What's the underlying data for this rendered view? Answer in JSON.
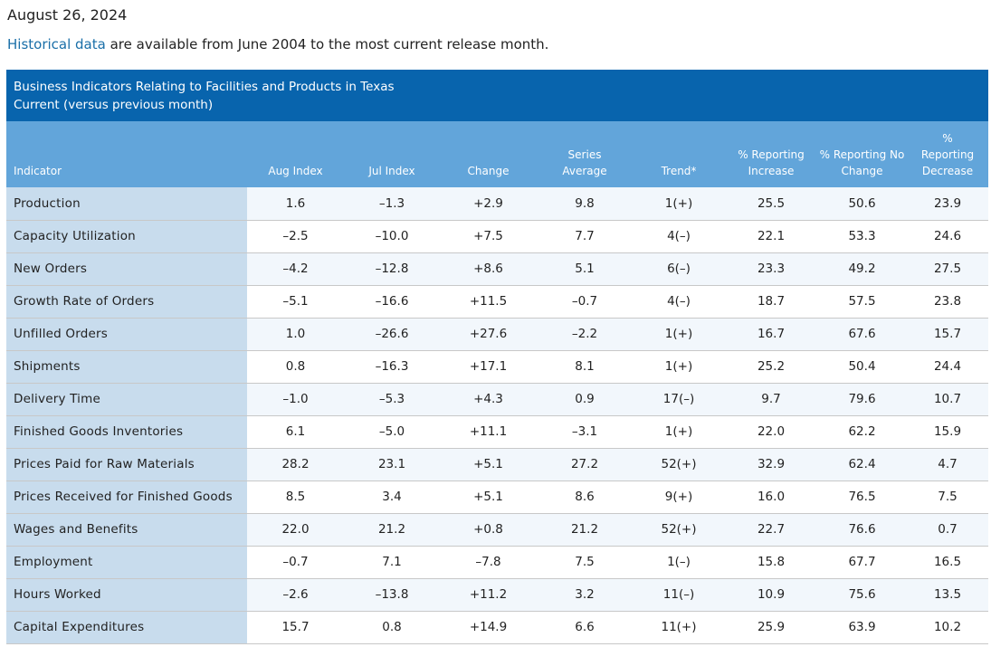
{
  "page": {
    "date": "August 26, 2024",
    "intro_link": "Historical data",
    "intro_rest": " are available from June 2004 to the most current release month."
  },
  "table": {
    "title": "Business Indicators Relating to Facilities and Products in Texas",
    "subtitle": "Current (versus previous month)",
    "headers": {
      "indicator": "Indicator",
      "aug": "Aug Index",
      "jul": "Jul Index",
      "change": "Change",
      "series_avg_1": "Series",
      "series_avg_2": "Average",
      "trend": "Trend*",
      "inc_1": "% Reporting",
      "inc_2": "Increase",
      "nochg_1": "% Reporting No",
      "nochg_2": "Change",
      "dec_1": "%",
      "dec_2": "Reporting",
      "dec_3": "Decrease"
    },
    "rows": [
      {
        "indicator": "Production",
        "aug": "1.6",
        "jul": "–1.3",
        "change": "+2.9",
        "avg": "9.8",
        "trend": "1(+)",
        "inc": "25.5",
        "nochg": "50.6",
        "dec": "23.9"
      },
      {
        "indicator": "Capacity Utilization",
        "aug": "–2.5",
        "jul": "–10.0",
        "change": "+7.5",
        "avg": "7.7",
        "trend": "4(–)",
        "inc": "22.1",
        "nochg": "53.3",
        "dec": "24.6"
      },
      {
        "indicator": "New Orders",
        "aug": "–4.2",
        "jul": "–12.8",
        "change": "+8.6",
        "avg": "5.1",
        "trend": "6(–)",
        "inc": "23.3",
        "nochg": "49.2",
        "dec": "27.5"
      },
      {
        "indicator": "Growth Rate of Orders",
        "aug": "–5.1",
        "jul": "–16.6",
        "change": "+11.5",
        "avg": "–0.7",
        "trend": "4(–)",
        "inc": "18.7",
        "nochg": "57.5",
        "dec": "23.8"
      },
      {
        "indicator": "Unfilled Orders",
        "aug": "1.0",
        "jul": "–26.6",
        "change": "+27.6",
        "avg": "–2.2",
        "trend": "1(+)",
        "inc": "16.7",
        "nochg": "67.6",
        "dec": "15.7"
      },
      {
        "indicator": "Shipments",
        "aug": "0.8",
        "jul": "–16.3",
        "change": "+17.1",
        "avg": "8.1",
        "trend": "1(+)",
        "inc": "25.2",
        "nochg": "50.4",
        "dec": "24.4"
      },
      {
        "indicator": "Delivery Time",
        "aug": "–1.0",
        "jul": "–5.3",
        "change": "+4.3",
        "avg": "0.9",
        "trend": "17(–)",
        "inc": "9.7",
        "nochg": "79.6",
        "dec": "10.7"
      },
      {
        "indicator": "Finished Goods Inventories",
        "aug": "6.1",
        "jul": "–5.0",
        "change": "+11.1",
        "avg": "–3.1",
        "trend": "1(+)",
        "inc": "22.0",
        "nochg": "62.2",
        "dec": "15.9"
      },
      {
        "indicator": "Prices Paid for Raw Materials",
        "aug": "28.2",
        "jul": "23.1",
        "change": "+5.1",
        "avg": "27.2",
        "trend": "52(+)",
        "inc": "32.9",
        "nochg": "62.4",
        "dec": "4.7"
      },
      {
        "indicator": "Prices Received for Finished Goods",
        "aug": "8.5",
        "jul": "3.4",
        "change": "+5.1",
        "avg": "8.6",
        "trend": "9(+)",
        "inc": "16.0",
        "nochg": "76.5",
        "dec": "7.5"
      },
      {
        "indicator": "Wages and Benefits",
        "aug": "22.0",
        "jul": "21.2",
        "change": "+0.8",
        "avg": "21.2",
        "trend": "52(+)",
        "inc": "22.7",
        "nochg": "76.6",
        "dec": "0.7"
      },
      {
        "indicator": "Employment",
        "aug": "–0.7",
        "jul": "7.1",
        "change": "–7.8",
        "avg": "7.5",
        "trend": "1(–)",
        "inc": "15.8",
        "nochg": "67.7",
        "dec": "16.5"
      },
      {
        "indicator": "Hours Worked",
        "aug": "–2.6",
        "jul": "–13.8",
        "change": "+11.2",
        "avg": "3.2",
        "trend": "11(–)",
        "inc": "10.9",
        "nochg": "75.6",
        "dec": "13.5"
      },
      {
        "indicator": "Capital Expenditures",
        "aug": "15.7",
        "jul": "0.8",
        "change": "+14.9",
        "avg": "6.6",
        "trend": "11(+)",
        "inc": "25.9",
        "nochg": "63.9",
        "dec": "10.2"
      }
    ]
  },
  "colors": {
    "link": "#1a6fa8",
    "caption_bg": "#0864ad",
    "header_bg": "#62a5da",
    "indicator_col_bg": "#c8dced",
    "row_alt_bg": "#f2f7fc"
  }
}
